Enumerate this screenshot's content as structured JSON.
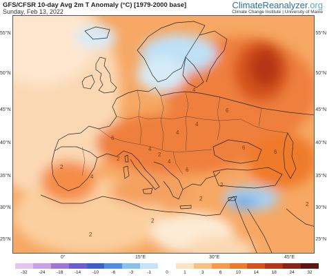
{
  "header": {
    "title": "GFS/CFSR 10-day Avg 2m T Anomaly (°C) [1979-2000 base]",
    "date": "Sunday, Feb 13, 2022"
  },
  "brand": {
    "name_main": "ClimateReanalyzer",
    "name_suffix": ".org",
    "subtitle": "Climate Change Institute | University of Maine"
  },
  "map": {
    "lat_labels_left": [
      "55°N",
      "50°N",
      "45°N",
      "40°N",
      "35°N",
      "30°N",
      "25°N"
    ],
    "lat_labels_right": [
      "55°N",
      "50°N",
      "45°N",
      "40°N",
      "35°N",
      "30°N",
      "25°N"
    ],
    "lon_labels": [
      "0°",
      "15°E",
      "30°E",
      "45°E"
    ],
    "contour_labels": [
      "6",
      "6",
      "4",
      "6",
      "6",
      "4",
      "2",
      "4",
      "6",
      "2",
      "4",
      "4",
      "2",
      "4",
      "2",
      "2",
      "2",
      "2",
      "2"
    ]
  },
  "colorbar": {
    "labels": [
      "-32",
      "-24",
      "-18",
      "-14",
      "-10",
      "-6",
      "-3",
      "-1",
      "0",
      "1",
      "3",
      "6",
      "10",
      "14",
      "18",
      "24",
      "32"
    ],
    "colors": [
      "#e3c6ef",
      "#c9a1e6",
      "#9f77d8",
      "#6a5ed0",
      "#3c5fc8",
      "#4f8ee0",
      "#88c0ee",
      "#c6e2f6",
      "#ffffff",
      "#fde3c4",
      "#fbbf83",
      "#f79a4c",
      "#ef7a2a",
      "#d4531a",
      "#b53518",
      "#8a2416",
      "#5c1610"
    ]
  }
}
